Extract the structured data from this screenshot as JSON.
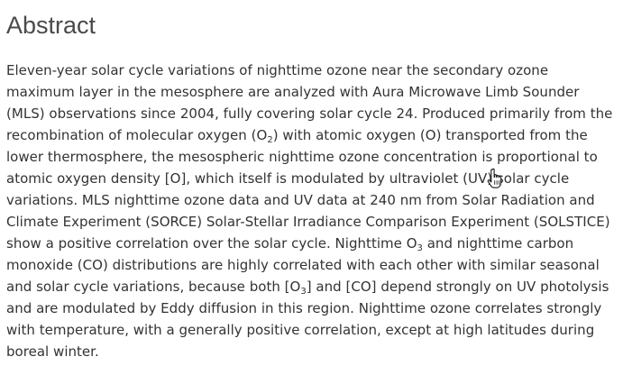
{
  "heading": "Abstract",
  "paragraph": {
    "lines": [
      [
        "Eleven-year solar cycle variations of nighttime ozone near the secondary ozone"
      ],
      [
        "maximum layer in the mesosphere are analyzed with Aura Microwave Limb Sounder"
      ],
      [
        "(MLS) observations since 2004, fully covering solar cycle 24. Produced primarily from the"
      ],
      [
        "recombination of molecular oxygen (O",
        "2",
        ") with atomic oxygen (O) transported from the"
      ],
      [
        "lower thermosphere, the mesospheric nighttime ozone concentration is proportional to"
      ],
      [
        "atomic oxygen density [O], which itself is modulated by ultraviolet (UV) solar cycle"
      ],
      [
        "variations. MLS nighttime ozone data and UV data at 240 nm from Solar Radiation and"
      ],
      [
        "Climate Experiment (SORCE) Solar-Stellar Irradiance Comparison Experiment (SOLSTICE)"
      ],
      [
        "show a positive correlation over the solar cycle. Nighttime O",
        "3",
        " and nighttime carbon"
      ],
      [
        "monoxide (CO) distributions are highly correlated with each other with similar seasonal"
      ],
      [
        "and solar cycle variations, because both [O",
        "3",
        "] and [CO] depend strongly on UV photolysis"
      ],
      [
        "and are modulated by Eddy diffusion in this region. Nighttime ozone correlates strongly"
      ],
      [
        "with temperature, with a generally positive correlation, except at high latitudes during"
      ],
      [
        "boreal winter."
      ]
    ]
  },
  "cursor_icon": "hand-pointer-icon"
}
